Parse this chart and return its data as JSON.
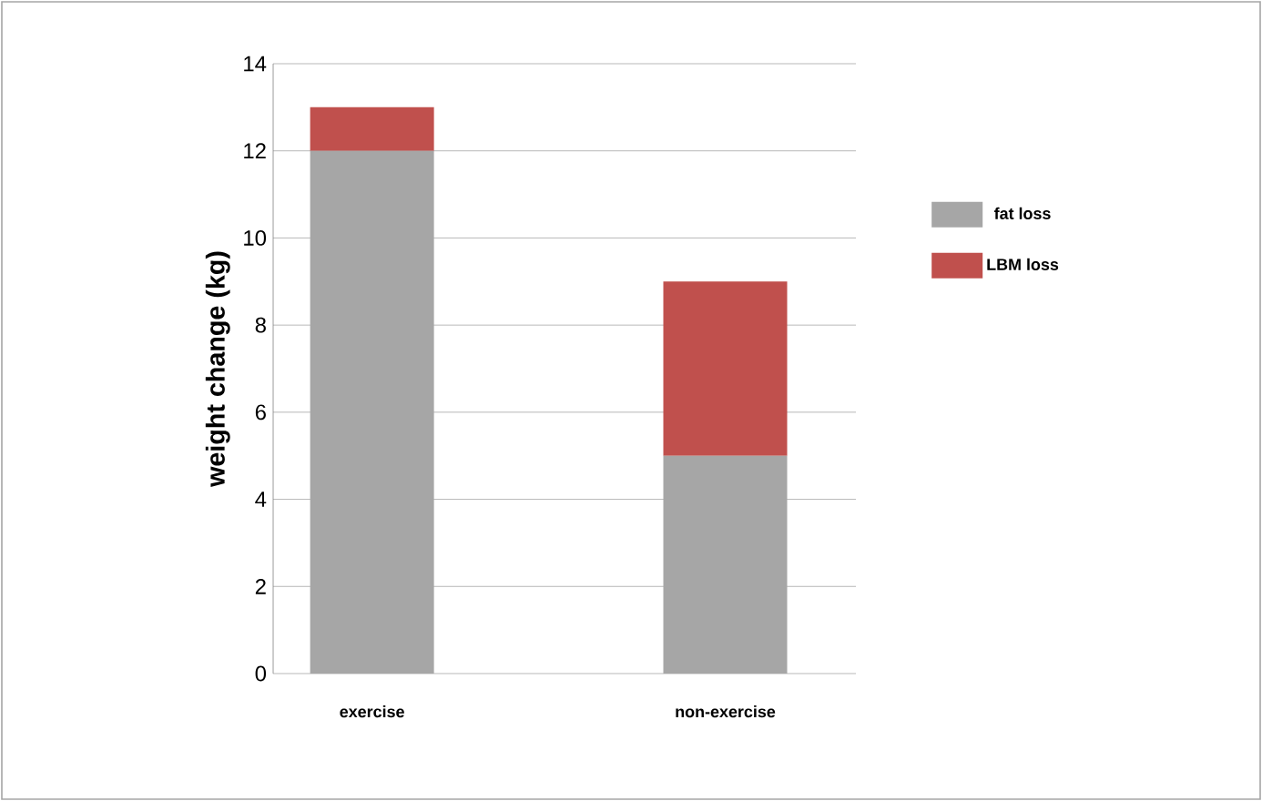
{
  "chart_data": {
    "type": "bar",
    "stacked": true,
    "ylabel": "weight change (kg)",
    "categories": [
      "exercise",
      "non-exercise"
    ],
    "series": [
      {
        "name": "fat loss",
        "color": "#a6a6a6",
        "values": [
          12,
          5
        ]
      },
      {
        "name": "LBM loss",
        "color": "#c0504d",
        "values": [
          1,
          4
        ]
      }
    ],
    "ylim": [
      0,
      14
    ],
    "yticks": [
      0,
      2,
      4,
      6,
      8,
      10,
      12,
      14
    ],
    "grid": "y",
    "legend": "right"
  }
}
